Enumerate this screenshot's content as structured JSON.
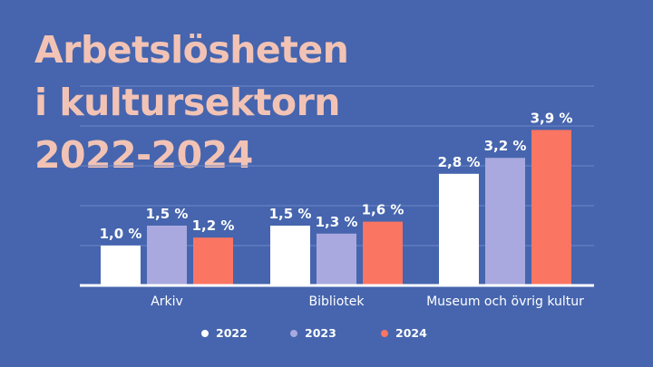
{
  "title_lines": [
    "Arbetslösheten",
    "i kultursektorn",
    "2022-2024"
  ],
  "colors": {
    "background": "#4665ae",
    "title": "#f2c3b5",
    "s2022": "#ffffff",
    "s2023": "#a9a9df",
    "s2024": "#fb7563",
    "grid": "#6f86c8"
  },
  "chart_data": {
    "type": "bar",
    "title": "Arbetslösheten i kultursektorn 2022-2024",
    "categories": [
      "Arkiv",
      "Bibliotek",
      "Museum och övrig kultur"
    ],
    "series": [
      {
        "name": "2022",
        "values": [
          1.0,
          1.5,
          2.8
        ],
        "labels": [
          "1,0 %",
          "1,5 %",
          "2,8 %"
        ]
      },
      {
        "name": "2023",
        "values": [
          1.5,
          1.3,
          3.2
        ],
        "labels": [
          "1,5 %",
          "1,3 %",
          "3,2 %"
        ]
      },
      {
        "name": "2024",
        "values": [
          1.2,
          1.6,
          3.9
        ],
        "labels": [
          "1,2 %",
          "1,6 %",
          "3,9 %"
        ]
      }
    ],
    "ylim": [
      0,
      5
    ],
    "grid": true,
    "legend_position": "bottom"
  }
}
